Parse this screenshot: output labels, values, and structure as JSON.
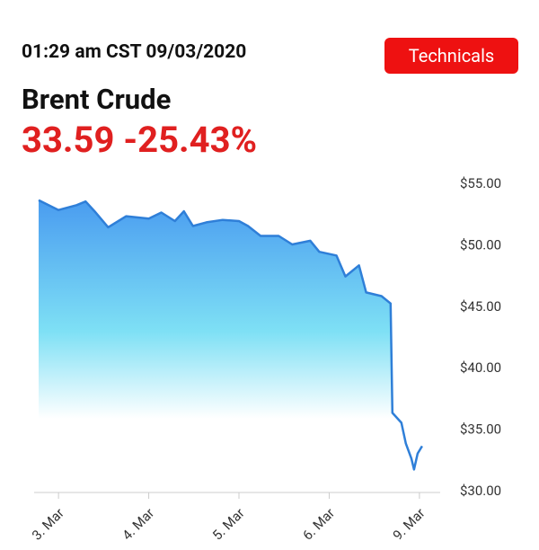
{
  "header": {
    "time": "01:29 am CST 09/03/2020",
    "button": "Technicals",
    "instrument": "Brent Crude",
    "price": "33.59",
    "change": "-25.43%"
  },
  "chart_data": {
    "type": "area",
    "color": "#2f7fd8",
    "x": [
      -0.22,
      0,
      0.2,
      0.3,
      0.4,
      0.55,
      0.75,
      1,
      1.14,
      1.29,
      1.39,
      1.49,
      1.64,
      1.82,
      2,
      2.1,
      2.24,
      2.44,
      2.59,
      2.79,
      2.89,
      3.08,
      3.18,
      3.33,
      3.41,
      3.58,
      3.68,
      3.7,
      3.8,
      3.85,
      3.91,
      3.94,
      3.98,
      4.03
    ],
    "values": [
      53.7,
      52.9,
      53.3,
      53.6,
      52.8,
      51.5,
      52.4,
      52.2,
      52.7,
      52.0,
      52.8,
      51.6,
      51.9,
      52.1,
      52.0,
      51.6,
      50.8,
      50.8,
      50.1,
      50.4,
      49.5,
      49.2,
      47.5,
      48.4,
      46.2,
      45.9,
      45.3,
      36.4,
      35.6,
      33.9,
      32.7,
      31.8,
      33.1,
      33.7
    ],
    "xlim": [
      -0.27,
      4.23
    ],
    "xticks": [
      {
        "value": 0,
        "label": "3. Mar"
      },
      {
        "value": 1,
        "label": "4. Mar"
      },
      {
        "value": 2,
        "label": "5. Mar"
      },
      {
        "value": 3,
        "label": "6. Mar"
      },
      {
        "value": 4,
        "label": "9. Mar"
      }
    ],
    "ylim": [
      30,
      55
    ],
    "yticks": [
      {
        "value": 55,
        "label": "$55.00"
      },
      {
        "value": 50,
        "label": "$50.00"
      },
      {
        "value": 45,
        "label": "$45.00"
      },
      {
        "value": 40,
        "label": "$40.00"
      },
      {
        "value": 35,
        "label": "$35.00"
      },
      {
        "value": 30,
        "label": "$30.00"
      }
    ],
    "grid": false
  }
}
